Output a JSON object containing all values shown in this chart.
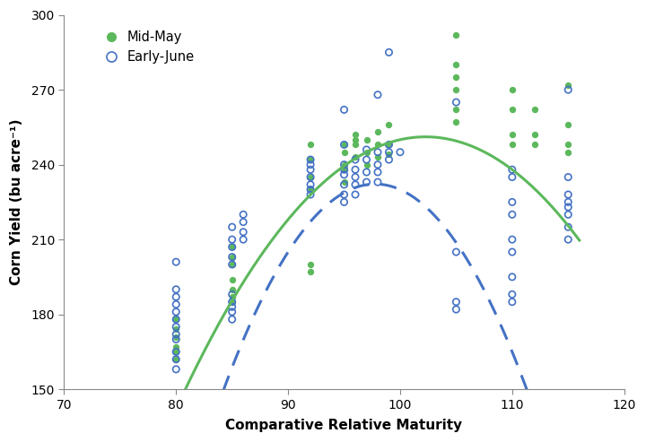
{
  "mid_may_x": [
    80,
    80,
    80,
    80,
    80,
    80,
    85,
    85,
    85,
    85,
    85,
    85,
    85,
    92,
    92,
    92,
    92,
    92,
    92,
    95,
    95,
    95,
    95,
    95,
    96,
    96,
    96,
    96,
    97,
    97,
    97,
    98,
    98,
    98,
    99,
    99,
    99,
    105,
    105,
    105,
    105,
    105,
    105,
    110,
    110,
    110,
    110,
    112,
    112,
    112,
    115,
    115,
    115,
    115
  ],
  "mid_may_y": [
    162,
    165,
    167,
    171,
    174,
    178,
    185,
    187,
    190,
    194,
    200,
    203,
    207,
    197,
    200,
    230,
    235,
    242,
    248,
    233,
    238,
    240,
    245,
    248,
    243,
    248,
    250,
    252,
    240,
    245,
    250,
    243,
    248,
    253,
    244,
    248,
    256,
    257,
    262,
    270,
    275,
    280,
    292,
    248,
    252,
    262,
    270,
    248,
    252,
    262,
    245,
    248,
    256,
    272
  ],
  "early_june_x": [
    80,
    80,
    80,
    80,
    80,
    80,
    80,
    80,
    80,
    80,
    80,
    80,
    85,
    85,
    85,
    85,
    85,
    85,
    85,
    85,
    85,
    85,
    86,
    86,
    86,
    86,
    92,
    92,
    92,
    92,
    92,
    92,
    92,
    95,
    95,
    95,
    95,
    95,
    95,
    95,
    95,
    96,
    96,
    96,
    96,
    96,
    97,
    97,
    97,
    97,
    98,
    98,
    98,
    98,
    98,
    99,
    99,
    99,
    99,
    100,
    105,
    105,
    105,
    105,
    110,
    110,
    110,
    110,
    110,
    110,
    110,
    110,
    110,
    115,
    115,
    115,
    115,
    115,
    115,
    115,
    115
  ],
  "early_june_y": [
    158,
    162,
    165,
    170,
    172,
    175,
    178,
    181,
    184,
    187,
    190,
    201,
    178,
    181,
    183,
    185,
    188,
    200,
    203,
    207,
    210,
    215,
    210,
    213,
    217,
    220,
    228,
    230,
    232,
    235,
    238,
    240,
    242,
    225,
    228,
    232,
    236,
    238,
    240,
    248,
    262,
    228,
    232,
    235,
    238,
    242,
    233,
    237,
    242,
    246,
    233,
    237,
    240,
    245,
    268,
    242,
    245,
    248,
    285,
    245,
    182,
    185,
    205,
    265,
    185,
    188,
    195,
    205,
    210,
    220,
    225,
    235,
    238,
    210,
    215,
    220,
    223,
    225,
    228,
    235,
    270
  ],
  "mid_may_curve_color": "#5CB85C",
  "early_june_curve_color": "#4472C4",
  "mid_may_marker_color": "#5CB85C",
  "early_june_marker_color": "#4472C4",
  "xlabel": "Comparative Relative Maturity",
  "ylabel": "Corn Yield (bu acre⁻¹)",
  "xlim": [
    70,
    120
  ],
  "ylim": [
    150,
    300
  ],
  "xticks": [
    70,
    80,
    90,
    100,
    110,
    120
  ],
  "yticks": [
    150,
    180,
    210,
    240,
    270,
    300
  ],
  "green_curve_coeffs": [
    -0.22,
    45.0,
    -2050.0
  ],
  "blue_curve_coeffs": [
    -0.45,
    88.0,
    -4070.0
  ],
  "curve_x_start": 80,
  "curve_x_end": 116
}
